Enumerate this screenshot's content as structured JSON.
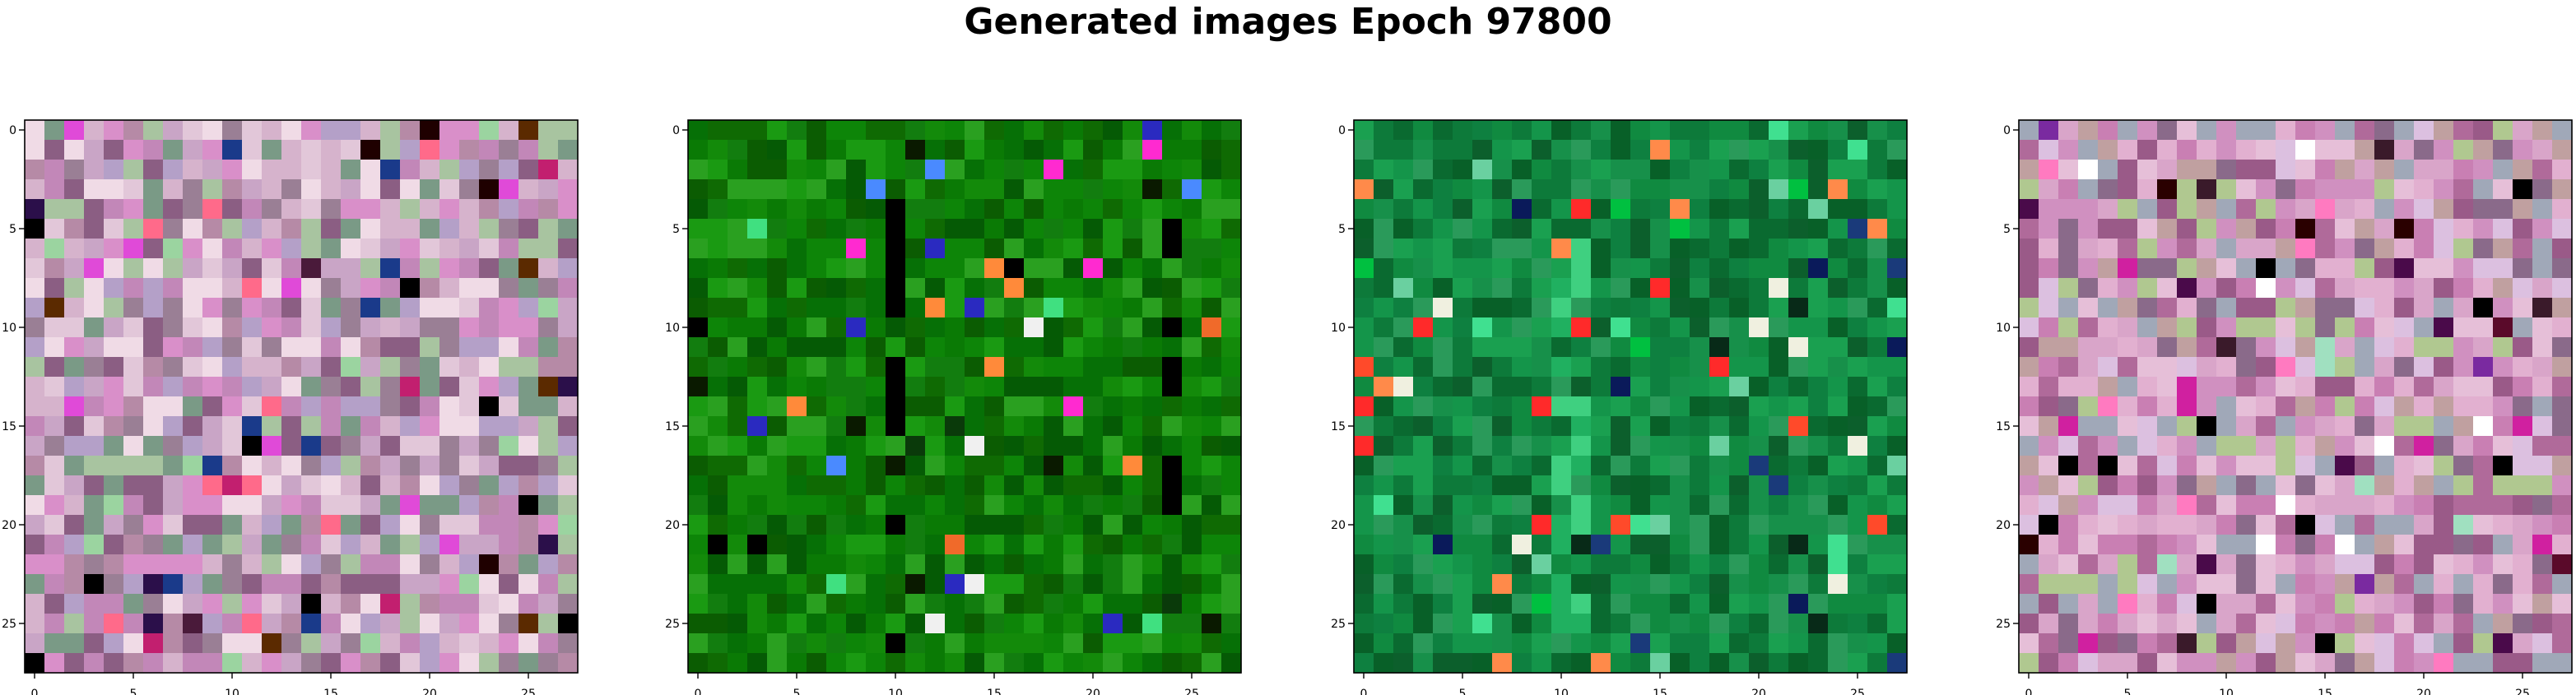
{
  "figure_title": "Generated images Epoch 97800",
  "chart_data": [
    {
      "type": "heatmap",
      "title": "",
      "xlabel": "",
      "ylabel": "",
      "grid_size": [
        28,
        28
      ],
      "xlim": [
        -0.5,
        27.5
      ],
      "ylim": [
        27.5,
        -0.5
      ],
      "x_ticks": [
        0,
        5,
        10,
        15,
        20,
        25
      ],
      "y_ticks": [
        0,
        5,
        10,
        15,
        20,
        25
      ],
      "grid": false,
      "palette": [
        "#c9a5c6",
        "#d6b3cc",
        "#b68aa6",
        "#e2c7d9",
        "#9a7f95",
        "#c287b8",
        "#a8c4a0",
        "#8b5e83",
        "#d98fc9",
        "#f0dbe6",
        "#7a9a86",
        "#b4a0c8"
      ],
      "highlight_colors": [
        "#1f0000",
        "#2b0f4a",
        "#000000",
        "#c21f6f",
        "#e04ad8",
        "#5b2a00",
        "#1a3a8a",
        "#ff6a8a",
        "#9bd4a0",
        "#4a1a3a"
      ]
    },
    {
      "type": "heatmap",
      "title": "",
      "xlabel": "",
      "ylabel": "",
      "grid_size": [
        28,
        28
      ],
      "xlim": [
        -0.5,
        27.5
      ],
      "ylim": [
        27.5,
        -0.5
      ],
      "x_ticks": [
        0,
        5,
        10,
        15,
        20,
        25
      ],
      "y_ticks": [
        0,
        5,
        10,
        15,
        20,
        25
      ],
      "grid": false,
      "palette": [
        "#0a7a05",
        "#0f6a03",
        "#138a0a",
        "#0b5c02",
        "#1a9a12",
        "#067006",
        "#0d8508",
        "#2aa020",
        "#055a05",
        "#127d0f"
      ],
      "highlight_colors": [
        "#000000",
        "#0a1a00",
        "#f06a2a",
        "#ff8a3a",
        "#2a2ac0",
        "#4a8aff",
        "#ff2ad0",
        "#f0f0f0",
        "#40e080",
        "#0a3a0a"
      ]
    },
    {
      "type": "heatmap",
      "title": "",
      "xlabel": "",
      "ylabel": "",
      "grid_size": [
        28,
        28
      ],
      "xlim": [
        -0.5,
        27.5
      ],
      "ylim": [
        27.5,
        -0.5
      ],
      "x_ticks": [
        0,
        5,
        10,
        15,
        20,
        25
      ],
      "y_ticks": [
        0,
        5,
        10,
        15,
        20,
        25
      ],
      "grid": false,
      "palette": [
        "#0d7a3a",
        "#108a40",
        "#0a6a30",
        "#14954a",
        "#0c5f2c",
        "#1aa050",
        "#0e8040",
        "#086028",
        "#17904a",
        "#2a9a5a"
      ],
      "highlight_colors": [
        "#ff4a2a",
        "#ff8a4a",
        "#f0f0e0",
        "#0a1a5a",
        "#40e090",
        "#082a18",
        "#ff2a2a",
        "#6ad0a0",
        "#1a3a7a",
        "#00c040"
      ]
    },
    {
      "type": "heatmap",
      "title": "",
      "xlabel": "",
      "ylabel": "",
      "grid_size": [
        28,
        28
      ],
      "xlim": [
        -0.5,
        27.5
      ],
      "ylim": [
        27.5,
        -0.5
      ],
      "x_ticks": [
        0,
        5,
        10,
        15,
        20,
        25
      ],
      "y_ticks": [
        0,
        5,
        10,
        15,
        20,
        25
      ],
      "grid": false,
      "palette": [
        "#c97fb3",
        "#d9a5c9",
        "#b06a9a",
        "#e6bfd8",
        "#9a5a88",
        "#d090c0",
        "#a0a8b8",
        "#c0a0a0",
        "#e2b0d0",
        "#8a6a8a",
        "#b0c890",
        "#dcc0e0"
      ],
      "highlight_colors": [
        "#2a0000",
        "#000000",
        "#5a0a2a",
        "#d020a0",
        "#ffffff",
        "#7a2aa0",
        "#a0e0c0",
        "#3a1a2a",
        "#ff7ac0",
        "#4a0a4a"
      ]
    }
  ]
}
